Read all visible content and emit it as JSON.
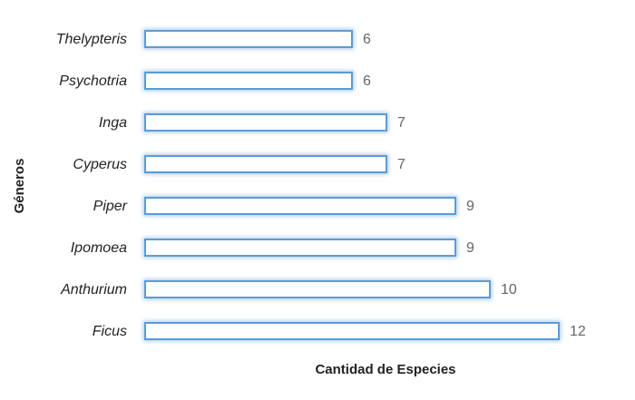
{
  "chart_data": {
    "type": "bar",
    "orientation": "horizontal",
    "x_label": "Cantidad de Especies",
    "y_label": "Géneros",
    "categories": [
      "Thelypteris",
      "Psychotria",
      "Inga",
      "Cyperus",
      "Piper",
      "Ipomoea",
      "Anthurium",
      "Ficus"
    ],
    "values": [
      6,
      6,
      7,
      7,
      9,
      9,
      10,
      12
    ],
    "color": "#5b9bd5",
    "fill": "#ffffff"
  }
}
